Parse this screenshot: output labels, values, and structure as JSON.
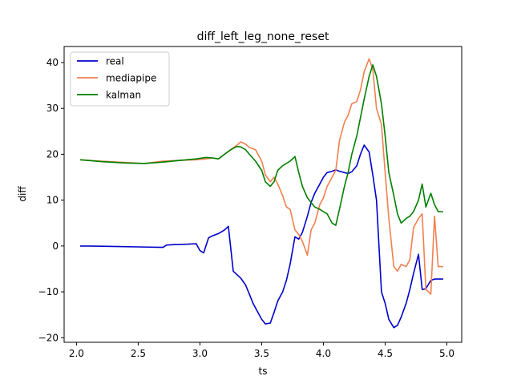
{
  "chart_data": {
    "type": "line",
    "title": "diff_left_leg_none_reset",
    "xlabel": "ts",
    "ylabel": "diff",
    "xlim": [
      1.9,
      5.12
    ],
    "ylim": [
      -21,
      43.5
    ],
    "xticks": [
      2.0,
      2.5,
      3.0,
      3.5,
      4.0,
      4.5,
      5.0
    ],
    "xtick_labels": [
      "2.0",
      "2.5",
      "3.0",
      "3.5",
      "4.0",
      "4.5",
      "5.0"
    ],
    "yticks": [
      -20,
      -10,
      0,
      10,
      20,
      30,
      40
    ],
    "ytick_labels": [
      "−20",
      "−10",
      "0",
      "10",
      "20",
      "30",
      "40"
    ],
    "grid": false,
    "legend_position": "top-left",
    "series": [
      {
        "name": "real",
        "color": "#0000cc",
        "x": [
          2.03,
          2.1,
          2.3,
          2.5,
          2.7,
          2.73,
          2.8,
          2.9,
          2.97,
          3.0,
          3.03,
          3.07,
          3.1,
          3.15,
          3.2,
          3.23,
          3.27,
          3.33,
          3.37,
          3.4,
          3.43,
          3.47,
          3.5,
          3.53,
          3.57,
          3.6,
          3.63,
          3.67,
          3.7,
          3.73,
          3.77,
          3.8,
          3.83,
          3.87,
          3.9,
          3.93,
          3.97,
          4.0,
          4.03,
          4.07,
          4.1,
          4.13,
          4.17,
          4.2,
          4.23,
          4.27,
          4.3,
          4.33,
          4.37,
          4.4,
          4.43,
          4.47,
          4.5,
          4.53,
          4.57,
          4.6,
          4.63,
          4.67,
          4.7,
          4.73,
          4.77,
          4.8,
          4.83,
          4.87,
          4.9,
          4.93,
          4.97
        ],
        "y": [
          0,
          0,
          -0.1,
          -0.2,
          -0.3,
          0.2,
          0.3,
          0.4,
          0.5,
          -1.0,
          -1.5,
          1.8,
          2.2,
          2.7,
          3.5,
          4.3,
          -5.5,
          -7.0,
          -8.5,
          -10.5,
          -12.5,
          -14.5,
          -16.0,
          -17.0,
          -16.8,
          -14.5,
          -12.0,
          -10.0,
          -7.5,
          -4.0,
          2.0,
          1.5,
          3.0,
          6.5,
          9.5,
          11.5,
          13.5,
          15.0,
          16.0,
          16.3,
          16.6,
          16.3,
          16.0,
          15.8,
          16.2,
          17.5,
          20.0,
          22.0,
          20.5,
          15.5,
          10.0,
          -10.0,
          -12.5,
          -16.0,
          -17.8,
          -17.3,
          -15.5,
          -12.5,
          -9.5,
          -6.0,
          -1.8,
          -9.5,
          -9.3,
          -7.5,
          -7.2,
          -7.2,
          -7.2
        ]
      },
      {
        "name": "mediapipe",
        "color": "#f08050",
        "x": [
          2.03,
          2.2,
          2.4,
          2.55,
          2.7,
          2.85,
          2.97,
          3.05,
          3.1,
          3.15,
          3.2,
          3.25,
          3.3,
          3.33,
          3.37,
          3.4,
          3.45,
          3.5,
          3.53,
          3.57,
          3.6,
          3.63,
          3.67,
          3.7,
          3.73,
          3.77,
          3.8,
          3.83,
          3.87,
          3.9,
          3.93,
          3.97,
          4.0,
          4.03,
          4.07,
          4.1,
          4.13,
          4.17,
          4.2,
          4.23,
          4.27,
          4.3,
          4.33,
          4.37,
          4.4,
          4.43,
          4.47,
          4.5,
          4.53,
          4.57,
          4.6,
          4.63,
          4.67,
          4.7,
          4.73,
          4.77,
          4.8,
          4.83,
          4.87,
          4.9,
          4.93,
          4.97
        ],
        "y": [
          18.8,
          18.5,
          18.2,
          18.0,
          18.5,
          18.7,
          18.8,
          19.0,
          19.2,
          19.0,
          20.0,
          21.0,
          22.0,
          22.7,
          22.2,
          21.5,
          21.0,
          18.5,
          15.5,
          14.0,
          15.0,
          13.5,
          11.0,
          8.5,
          8.0,
          3.5,
          2.5,
          1.0,
          -2.0,
          3.5,
          5.0,
          9.0,
          10.5,
          13.0,
          15.0,
          16.5,
          23.0,
          27.0,
          28.5,
          31.0,
          31.5,
          34.0,
          38.0,
          40.8,
          38.5,
          30.0,
          26.5,
          16.0,
          6.0,
          -4.5,
          -5.5,
          -4.0,
          -4.5,
          -3.0,
          4.0,
          6.0,
          7.0,
          -9.5,
          -10.5,
          6.5,
          -4.5,
          -4.5
        ]
      },
      {
        "name": "kalman",
        "color": "#008000",
        "x": [
          2.03,
          2.2,
          2.4,
          2.55,
          2.7,
          2.85,
          2.97,
          3.05,
          3.1,
          3.15,
          3.2,
          3.25,
          3.3,
          3.33,
          3.37,
          3.4,
          3.45,
          3.5,
          3.53,
          3.57,
          3.6,
          3.63,
          3.67,
          3.7,
          3.73,
          3.77,
          3.8,
          3.83,
          3.87,
          3.9,
          3.93,
          3.97,
          4.0,
          4.03,
          4.07,
          4.1,
          4.13,
          4.17,
          4.2,
          4.23,
          4.27,
          4.3,
          4.33,
          4.37,
          4.4,
          4.43,
          4.47,
          4.5,
          4.53,
          4.57,
          4.6,
          4.63,
          4.67,
          4.7,
          4.73,
          4.77,
          4.8,
          4.83,
          4.87,
          4.9,
          4.93,
          4.97
        ],
        "y": [
          18.8,
          18.4,
          18.1,
          18.0,
          18.3,
          18.7,
          19.0,
          19.3,
          19.2,
          19.0,
          20.0,
          21.0,
          21.7,
          21.6,
          21.0,
          20.0,
          18.5,
          16.5,
          14.0,
          13.0,
          14.0,
          16.5,
          17.5,
          18.0,
          18.5,
          19.5,
          16.0,
          13.0,
          10.5,
          9.5,
          8.5,
          8.0,
          7.5,
          7.0,
          5.0,
          4.5,
          8.0,
          13.0,
          16.0,
          20.0,
          24.0,
          28.0,
          32.0,
          37.0,
          39.5,
          37.0,
          31.0,
          24.0,
          16.0,
          11.0,
          7.0,
          5.0,
          6.0,
          6.5,
          7.5,
          10.0,
          13.5,
          8.5,
          11.5,
          9.0,
          7.5,
          7.5
        ]
      }
    ]
  }
}
